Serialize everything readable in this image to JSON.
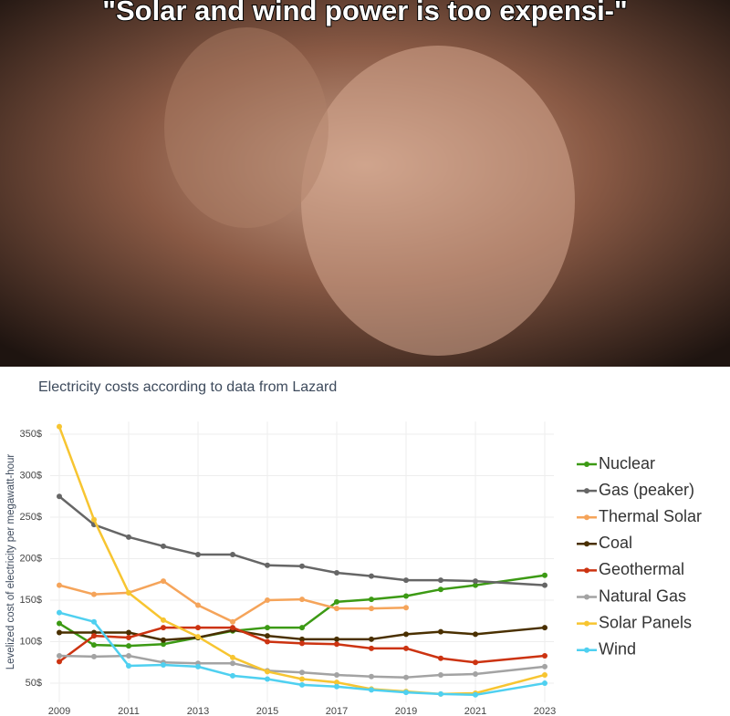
{
  "caption": "\"Solar and wind power is too expensi-\"",
  "chart_data": {
    "type": "line",
    "title": "Electricity costs according to data from Lazard",
    "y_label": "Levelized cost of electricity per megawatt-hour",
    "x": [
      2009,
      2010,
      2011,
      2012,
      2013,
      2014,
      2015,
      2016,
      2017,
      2018,
      2019,
      2020,
      2021,
      2023
    ],
    "xlim": [
      2009,
      2023
    ],
    "xticks": [
      2009,
      2011,
      2013,
      2015,
      2017,
      2019,
      2021,
      2023
    ],
    "ylim": [
      27,
      365
    ],
    "yticks": [
      {
        "value": 50,
        "label": "50$"
      },
      {
        "value": 100,
        "label": "100$"
      },
      {
        "value": 150,
        "label": "150$"
      },
      {
        "value": 200,
        "label": "200$"
      },
      {
        "value": 250,
        "label": "250$"
      },
      {
        "value": 300,
        "label": "300$"
      },
      {
        "value": 350,
        "label": "350$"
      }
    ],
    "grid": true,
    "legend": "right",
    "series": [
      {
        "name": "Nuclear",
        "color": "#3c9a14",
        "values": [
          122,
          96,
          95,
          97,
          105,
          113,
          117,
          117,
          148,
          151,
          155,
          163,
          168,
          180
        ]
      },
      {
        "name": "Gas (peaker)",
        "color": "#666666",
        "values": [
          275,
          241,
          226,
          215,
          205,
          205,
          192,
          191,
          183,
          179,
          174,
          174,
          173,
          168
        ]
      },
      {
        "name": "Thermal Solar",
        "color": "#f5a45a",
        "values": [
          168,
          157,
          159,
          173,
          144,
          124,
          150,
          151,
          140,
          140,
          141,
          null,
          null,
          null
        ]
      },
      {
        "name": "Coal",
        "color": "#4a3000",
        "values": [
          111,
          111,
          111,
          102,
          105,
          114,
          107,
          103,
          103,
          103,
          109,
          112,
          109,
          117
        ]
      },
      {
        "name": "Geothermal",
        "color": "#cc3311",
        "values": [
          76,
          107,
          105,
          117,
          117,
          117,
          100,
          98,
          97,
          92,
          92,
          80,
          75,
          83
        ]
      },
      {
        "name": "Natural Gas",
        "color": "#a3a3a3",
        "values": [
          83,
          82,
          83,
          75,
          74,
          74,
          65,
          63,
          60,
          58,
          57,
          60,
          61,
          70
        ]
      },
      {
        "name": "Solar Panels",
        "color": "#f7c531",
        "values": [
          359,
          247,
          159,
          126,
          106,
          81,
          64,
          55,
          51,
          43,
          40,
          37,
          38,
          60
        ]
      },
      {
        "name": "Wind",
        "color": "#4fd0f0",
        "values": [
          135,
          124,
          71,
          72,
          70,
          59,
          55,
          48,
          46,
          42,
          39,
          37,
          36,
          50
        ]
      }
    ]
  }
}
